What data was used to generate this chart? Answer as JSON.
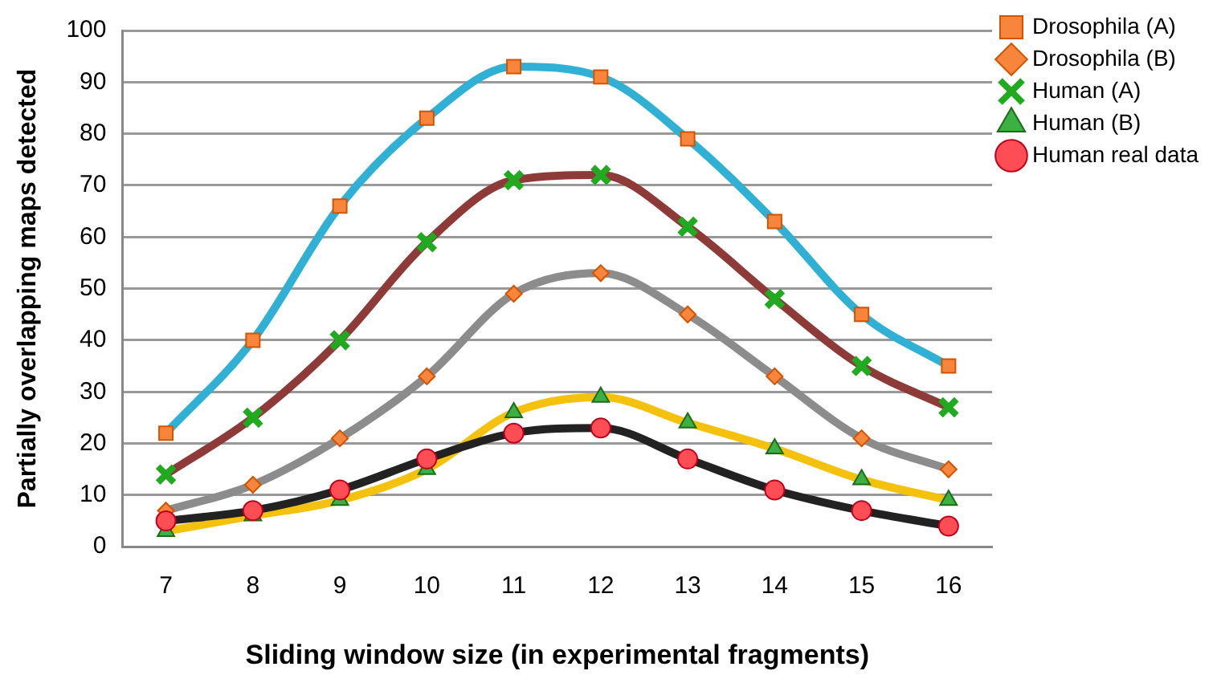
{
  "chart_data": {
    "type": "line",
    "xlabel": "Sliding window size (in experimental fragments)",
    "ylabel": "Partially overlapping maps detected",
    "categories": [
      "7",
      "8",
      "9",
      "10",
      "11",
      "12",
      "13",
      "14",
      "15",
      "16"
    ],
    "ylim": [
      0,
      100
    ],
    "yticks": [
      0,
      10,
      20,
      30,
      40,
      50,
      60,
      70,
      80,
      90,
      100
    ],
    "grid": "y",
    "legend": "top right",
    "series": [
      {
        "name": "Drosophila (A)",
        "color": "#31b0d5",
        "marker": "square",
        "values": [
          22,
          40,
          66,
          83,
          93,
          91,
          79,
          63,
          45,
          35
        ]
      },
      {
        "name": "Drosophila (B)",
        "color": "#8c8c8c",
        "marker": "diamond",
        "values": [
          7,
          12,
          21,
          33,
          49,
          53,
          45,
          33,
          21,
          15
        ]
      },
      {
        "name": "Human (A)",
        "color": "#8e3a38",
        "marker": "cross",
        "values": [
          14,
          25,
          40,
          59,
          71,
          72,
          62,
          48,
          35,
          27
        ]
      },
      {
        "name": "Human (B)",
        "color": "#f4c20d",
        "marker": "triangle",
        "values": [
          3,
          6,
          9,
          15,
          26,
          29,
          24,
          19,
          13,
          9
        ]
      },
      {
        "name": "Human real data",
        "color": "#222222",
        "marker": "circle",
        "values": [
          5,
          7,
          11,
          17,
          22,
          23,
          17,
          11,
          7,
          4
        ]
      }
    ]
  }
}
